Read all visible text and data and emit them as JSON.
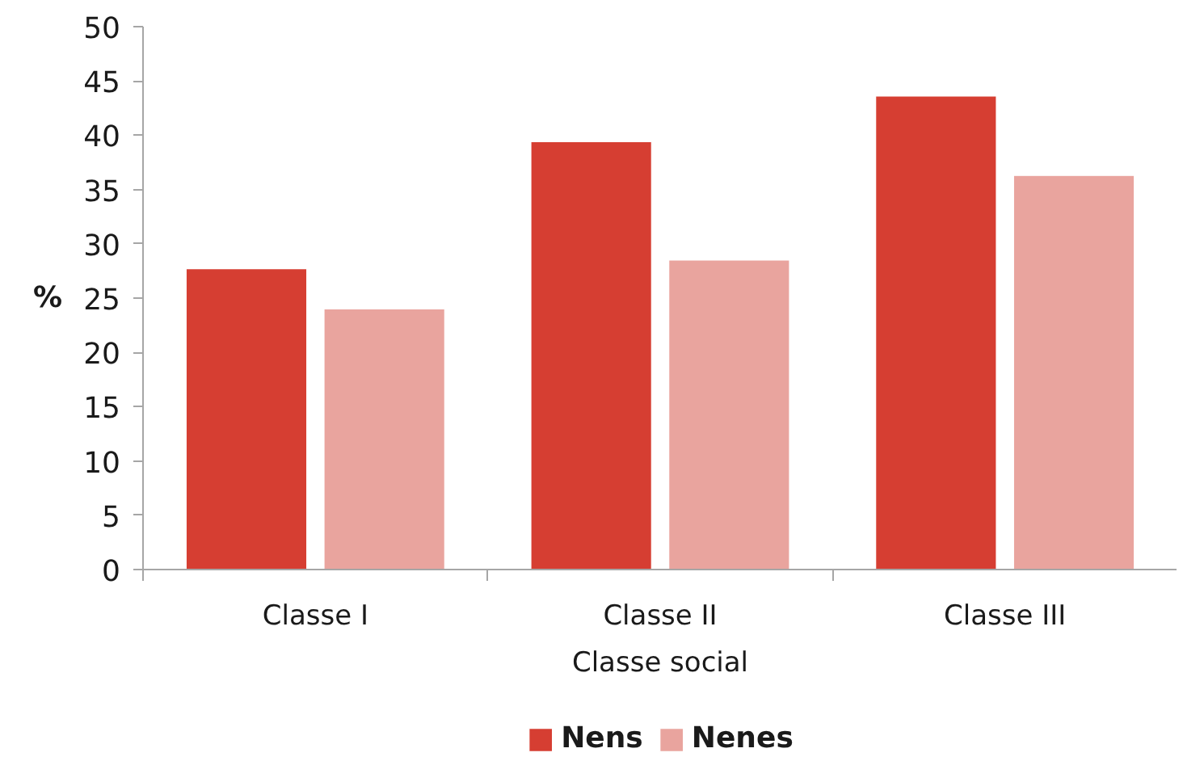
{
  "chart_data": {
    "type": "bar",
    "xlabel": "Classe social",
    "ylabel": "%",
    "categories": [
      "Classe I",
      "Classe II",
      "Classe III"
    ],
    "series": [
      {
        "name": "Nens",
        "color": "#d63e32",
        "values": [
          27.7,
          39.4,
          43.6
        ]
      },
      {
        "name": "Nenes",
        "color": "#e9a49e",
        "values": [
          24.0,
          28.5,
          36.3
        ]
      }
    ],
    "ylim": [
      0,
      50
    ],
    "yticks": [
      0,
      5,
      10,
      15,
      20,
      25,
      30,
      35,
      40,
      45,
      50
    ],
    "grid": false,
    "legend": "bottom"
  }
}
